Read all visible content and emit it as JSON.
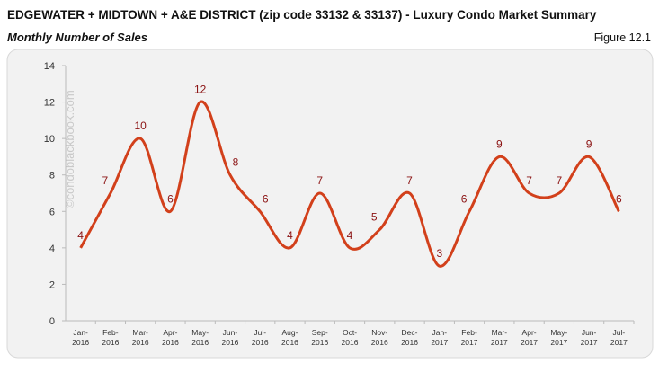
{
  "chart_data": {
    "type": "line",
    "title": "EDGEWATER + MIDTOWN + A&E DISTRICT (zip code 33132 & 33137) - Luxury Condo Market Summary",
    "subtitle": "Monthly Number of Sales",
    "figure_label": "Figure 12.1",
    "watermark": "©condoblackbook.com",
    "categories": [
      [
        "Jan-",
        "2016"
      ],
      [
        "Feb-",
        "2016"
      ],
      [
        "Mar-",
        "2016"
      ],
      [
        "Apr-",
        "2016"
      ],
      [
        "May-",
        "2016"
      ],
      [
        "Jun-",
        "2016"
      ],
      [
        "Jul-",
        "2016"
      ],
      [
        "Aug-",
        "2016"
      ],
      [
        "Sep-",
        "2016"
      ],
      [
        "Oct-",
        "2016"
      ],
      [
        "Nov-",
        "2016"
      ],
      [
        "Dec-",
        "2016"
      ],
      [
        "Jan-",
        "2017"
      ],
      [
        "Feb-",
        "2017"
      ],
      [
        "Mar-",
        "2017"
      ],
      [
        "Apr-",
        "2017"
      ],
      [
        "May-",
        "2017"
      ],
      [
        "Jun-",
        "2017"
      ],
      [
        "Jul-",
        "2017"
      ]
    ],
    "values": [
      4,
      7,
      10,
      6,
      12,
      8,
      6,
      4,
      7,
      4,
      5,
      7,
      3,
      6,
      9,
      7,
      7,
      9,
      6
    ],
    "color": "#d2401b",
    "label_color": "#8b1212",
    "smooth": true,
    "ylim": [
      0,
      14
    ],
    "yticks": [
      0,
      2,
      4,
      6,
      8,
      10,
      12,
      14
    ],
    "grid": false
  }
}
